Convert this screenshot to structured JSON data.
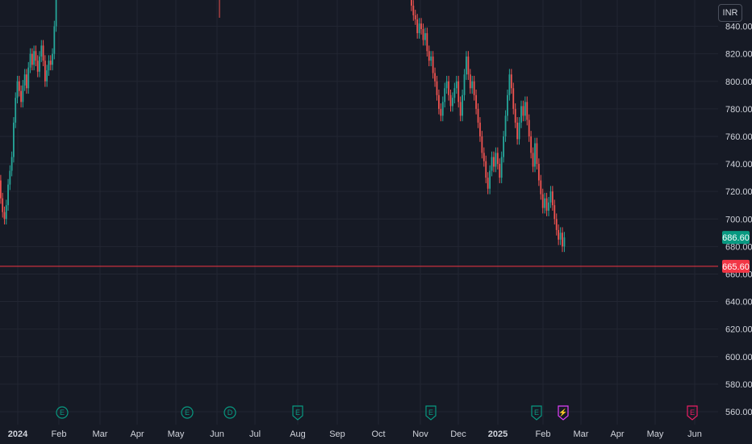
{
  "currency": "INR",
  "colors": {
    "up": "#26a69a",
    "down": "#ef5350",
    "background": "#161a25",
    "grid": "#222632",
    "text": "#d1d4dc",
    "level_line": "#f23645",
    "last_price_badge": "#089981",
    "dividend": "#089981",
    "split": "#e040fb",
    "future_earnings": "#e91e63"
  },
  "chart_data": {
    "type": "candlestick",
    "ylim": [
      560,
      855
    ],
    "y_ticks": [
      560,
      580,
      600,
      620,
      640,
      660,
      680,
      700,
      720,
      740,
      760,
      780,
      800,
      820,
      840
    ],
    "x_ticks": [
      {
        "label": "2024",
        "bold": true
      },
      {
        "label": "Feb"
      },
      {
        "label": "Mar"
      },
      {
        "label": "Apr"
      },
      {
        "label": "May"
      },
      {
        "label": "Jun"
      },
      {
        "label": "Jul"
      },
      {
        "label": "Aug"
      },
      {
        "label": "Sep"
      },
      {
        "label": "Oct"
      },
      {
        "label": "Nov"
      },
      {
        "label": "Dec"
      },
      {
        "label": "2025",
        "bold": true
      },
      {
        "label": "Feb"
      },
      {
        "label": "Mar"
      },
      {
        "label": "Apr"
      },
      {
        "label": "May"
      },
      {
        "label": "Jun"
      }
    ],
    "last_price": {
      "value": 686.6,
      "label": "686.60"
    },
    "level_line": {
      "value": 665.6,
      "label": "665.60"
    },
    "events": [
      {
        "label": "E",
        "kind": "dividend",
        "month": "Feb 2024"
      },
      {
        "label": "E",
        "kind": "dividend",
        "month": "May 2024"
      },
      {
        "label": "D",
        "kind": "dividend",
        "month": "Jun 2024"
      },
      {
        "label": "E",
        "kind": "earnings",
        "month": "Aug 2024"
      },
      {
        "label": "E",
        "kind": "earnings",
        "month": "Nov 2024"
      },
      {
        "label": "E",
        "kind": "earnings",
        "month": "Feb 2025"
      },
      {
        "label": "⚡",
        "kind": "split",
        "month": "Feb 2025"
      },
      {
        "label": "E",
        "kind": "future_earnings",
        "month": "Jun 2025"
      }
    ],
    "series": [
      {
        "segment": "Jan-Feb 2024",
        "points": [
          [
            728,
            715
          ],
          [
            715,
            705
          ],
          [
            705,
            700
          ],
          [
            700,
            710
          ],
          [
            710,
            725
          ],
          [
            725,
            735
          ],
          [
            735,
            745
          ],
          [
            745,
            770
          ],
          [
            770,
            788
          ],
          [
            788,
            800
          ],
          [
            800,
            793
          ],
          [
            793,
            785
          ],
          [
            785,
            797
          ],
          [
            797,
            805
          ],
          [
            805,
            795
          ],
          [
            795,
            810
          ],
          [
            810,
            820
          ],
          [
            820,
            812
          ],
          [
            812,
            822
          ],
          [
            822,
            815
          ],
          [
            815,
            807
          ],
          [
            807,
            818
          ],
          [
            818,
            826
          ],
          [
            826,
            815
          ],
          [
            815,
            800
          ],
          [
            800,
            808
          ],
          [
            808,
            815
          ],
          [
            815,
            812
          ],
          [
            812,
            820
          ],
          [
            820,
            840
          ],
          [
            840,
            860
          ]
        ]
      },
      {
        "segment": "Oct-Feb 2025",
        "points": [
          [
            860,
            855
          ],
          [
            855,
            848
          ],
          [
            848,
            845
          ],
          [
            845,
            835
          ],
          [
            835,
            842
          ],
          [
            842,
            838
          ],
          [
            838,
            830
          ],
          [
            830,
            835
          ],
          [
            835,
            822
          ],
          [
            822,
            815
          ],
          [
            815,
            818
          ],
          [
            818,
            806
          ],
          [
            806,
            800
          ],
          [
            800,
            790
          ],
          [
            790,
            780
          ],
          [
            780,
            775
          ],
          [
            775,
            785
          ],
          [
            785,
            795
          ],
          [
            795,
            800
          ],
          [
            800,
            790
          ],
          [
            790,
            782
          ],
          [
            782,
            788
          ],
          [
            788,
            795
          ],
          [
            795,
            800
          ],
          [
            800,
            785
          ],
          [
            785,
            775
          ],
          [
            775,
            790
          ],
          [
            790,
            805
          ],
          [
            805,
            818
          ],
          [
            818,
            805
          ],
          [
            805,
            795
          ],
          [
            795,
            800
          ],
          [
            800,
            790
          ],
          [
            790,
            780
          ],
          [
            780,
            770
          ],
          [
            770,
            760
          ],
          [
            760,
            748
          ],
          [
            748,
            742
          ],
          [
            742,
            730
          ],
          [
            730,
            722
          ],
          [
            722,
            735
          ],
          [
            735,
            745
          ],
          [
            745,
            738
          ],
          [
            738,
            748
          ],
          [
            748,
            740
          ],
          [
            740,
            730
          ],
          [
            730,
            745
          ],
          [
            745,
            760
          ],
          [
            760,
            775
          ],
          [
            775,
            790
          ],
          [
            790,
            805
          ],
          [
            805,
            795
          ],
          [
            795,
            780
          ],
          [
            780,
            770
          ],
          [
            770,
            758
          ],
          [
            758,
            770
          ],
          [
            770,
            782
          ],
          [
            782,
            775
          ],
          [
            775,
            785
          ],
          [
            785,
            772
          ],
          [
            772,
            760
          ],
          [
            760,
            748
          ],
          [
            748,
            738
          ],
          [
            738,
            755
          ],
          [
            755,
            740
          ],
          [
            740,
            728
          ],
          [
            728,
            718
          ],
          [
            718,
            708
          ],
          [
            708,
            715
          ],
          [
            715,
            706
          ],
          [
            706,
            712
          ],
          [
            712,
            720
          ],
          [
            720,
            710
          ],
          [
            710,
            700
          ],
          [
            700,
            692
          ],
          [
            692,
            685
          ],
          [
            685,
            690
          ],
          [
            690,
            680
          ],
          [
            680,
            686.6
          ]
        ]
      }
    ]
  }
}
